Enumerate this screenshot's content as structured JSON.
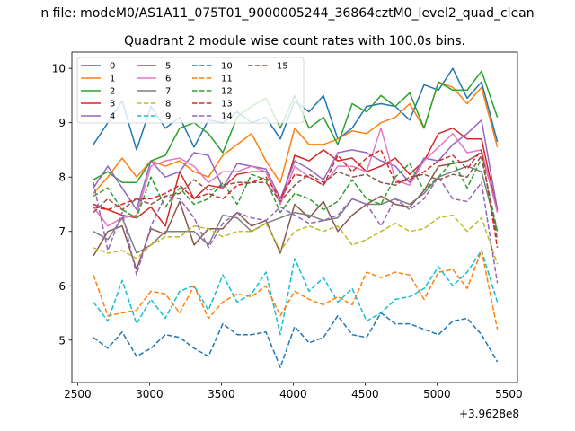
{
  "figure": {
    "suptitle": "n file: modeM0/AS1A11_075T01_9000005244_36864cztM0_level2_quad_clean",
    "title": "Quadrant 2 module wise count rates with 100.0s bins.",
    "offset_label": "+3.9628e8"
  },
  "chart_data": {
    "type": "line",
    "title": "Quadrant 2 module wise count rates with 100.0s bins.",
    "xlabel": "",
    "ylabel": "",
    "x_offset": 396280000,
    "xlim": [
      2460,
      5560
    ],
    "ylim": [
      4.22,
      10.3
    ],
    "xticks": [
      2500,
      3000,
      3500,
      4000,
      4500,
      5000,
      5500
    ],
    "xtick_labels": [
      "2500",
      "3000",
      "3500",
      "4000",
      "4500",
      "5000",
      "5500"
    ],
    "yticks": [
      5,
      6,
      7,
      8,
      9,
      10
    ],
    "ytick_labels": [
      "5",
      "6",
      "7",
      "8",
      "9",
      "10"
    ],
    "grid": false,
    "legend_position": "top-left",
    "legend_columns": 4,
    "x": [
      2610,
      2710,
      2810,
      2910,
      3010,
      3110,
      3210,
      3310,
      3410,
      3510,
      3610,
      3710,
      3810,
      3910,
      4010,
      4110,
      4210,
      4310,
      4410,
      4510,
      4610,
      4710,
      4810,
      4910,
      5010,
      5110,
      5210,
      5310,
      5420
    ],
    "series": [
      {
        "name": "0",
        "color": "#1f77b4",
        "dash": "solid",
        "values": [
          8.6,
          9.0,
          9.4,
          8.5,
          9.3,
          8.9,
          9.1,
          8.55,
          9.05,
          9.0,
          9.2,
          9.0,
          9.1,
          8.7,
          9.4,
          9.2,
          9.5,
          8.7,
          8.9,
          9.3,
          9.35,
          9.3,
          9.05,
          9.7,
          9.6,
          10.0,
          9.45,
          9.75,
          8.65
        ]
      },
      {
        "name": "1",
        "color": "#ff7f0e",
        "dash": "solid",
        "values": [
          7.7,
          8.0,
          8.35,
          8.0,
          8.3,
          8.2,
          8.3,
          8.1,
          8.0,
          8.4,
          8.6,
          8.8,
          8.3,
          7.9,
          8.9,
          8.6,
          8.6,
          8.7,
          8.85,
          8.8,
          9.0,
          9.1,
          9.35,
          8.9,
          9.75,
          9.65,
          9.35,
          9.65,
          8.55
        ]
      },
      {
        "name": "2",
        "color": "#2ca02c",
        "dash": "solid",
        "values": [
          7.95,
          8.1,
          7.9,
          7.9,
          8.3,
          8.4,
          8.9,
          9.0,
          8.8,
          8.45,
          9.1,
          9.3,
          9.45,
          8.9,
          9.5,
          8.9,
          9.1,
          8.6,
          9.35,
          9.2,
          9.5,
          9.3,
          9.55,
          8.9,
          9.75,
          9.6,
          9.6,
          9.95,
          9.1
        ]
      },
      {
        "name": "3",
        "color": "#d62728",
        "dash": "solid",
        "values": [
          7.5,
          7.4,
          7.3,
          7.25,
          7.45,
          7.1,
          8.1,
          7.6,
          7.85,
          7.8,
          8.05,
          8.1,
          8.1,
          7.5,
          8.4,
          8.3,
          8.5,
          8.3,
          8.35,
          8.1,
          8.2,
          8.35,
          8.05,
          8.3,
          8.8,
          8.9,
          8.7,
          8.7,
          7.35
        ]
      },
      {
        "name": "4",
        "color": "#9467bd",
        "dash": "solid",
        "values": [
          7.8,
          8.2,
          7.8,
          7.4,
          8.3,
          8.0,
          8.1,
          8.45,
          8.4,
          7.8,
          8.25,
          8.2,
          8.15,
          7.6,
          8.3,
          8.15,
          7.95,
          8.45,
          8.5,
          8.45,
          8.3,
          8.2,
          7.9,
          8.35,
          8.3,
          8.6,
          8.8,
          9.05,
          7.4
        ]
      },
      {
        "name": "5",
        "color": "#8c564b",
        "dash": "solid",
        "values": [
          6.55,
          7.0,
          7.1,
          6.3,
          7.05,
          6.95,
          7.55,
          6.75,
          7.05,
          7.05,
          7.35,
          7.1,
          7.2,
          6.6,
          7.5,
          7.25,
          7.55,
          7.0,
          7.3,
          7.5,
          7.65,
          7.5,
          7.45,
          7.75,
          8.2,
          8.25,
          8.3,
          8.45,
          7.4
        ]
      },
      {
        "name": "6",
        "color": "#e377c2",
        "dash": "solid",
        "values": [
          7.45,
          7.1,
          7.25,
          7.3,
          8.2,
          8.3,
          8.35,
          8.2,
          7.9,
          8.1,
          8.1,
          8.2,
          8.1,
          7.5,
          8.2,
          8.0,
          7.85,
          8.2,
          8.2,
          8.1,
          8.9,
          7.95,
          7.85,
          8.3,
          8.55,
          8.8,
          8.45,
          8.5,
          7.35
        ]
      },
      {
        "name": "7",
        "color": "#7f7f7f",
        "dash": "solid",
        "values": [
          7.0,
          6.85,
          7.25,
          6.6,
          6.75,
          7.0,
          7.0,
          7.0,
          6.75,
          7.3,
          7.25,
          7.0,
          7.15,
          7.25,
          7.35,
          7.3,
          7.2,
          7.25,
          7.6,
          7.5,
          7.5,
          7.6,
          7.5,
          7.7,
          8.0,
          8.1,
          8.2,
          8.1,
          7.0
        ]
      },
      {
        "name": "8",
        "color": "#bcbd22",
        "dash": "dashed",
        "values": [
          6.7,
          6.6,
          6.65,
          6.5,
          6.75,
          6.9,
          6.9,
          7.1,
          7.05,
          6.9,
          7.0,
          7.0,
          7.15,
          6.65,
          7.0,
          7.1,
          7.0,
          7.1,
          6.75,
          6.85,
          7.0,
          7.15,
          7.0,
          7.05,
          7.25,
          7.3,
          7.0,
          7.25,
          6.4
        ]
      },
      {
        "name": "9",
        "color": "#17becf",
        "dash": "dashed",
        "values": [
          5.7,
          5.35,
          6.1,
          5.3,
          5.75,
          5.4,
          5.9,
          6.0,
          5.55,
          6.2,
          5.7,
          5.85,
          6.25,
          5.1,
          6.5,
          5.9,
          6.15,
          5.7,
          5.95,
          5.35,
          5.5,
          5.75,
          5.8,
          5.95,
          6.35,
          6.0,
          6.25,
          6.65,
          5.7
        ]
      },
      {
        "name": "10",
        "color": "#1f77b4",
        "dash": "dashed",
        "values": [
          5.05,
          4.85,
          5.15,
          4.7,
          4.85,
          5.1,
          5.05,
          4.85,
          4.7,
          5.3,
          5.1,
          5.1,
          5.15,
          4.5,
          5.25,
          4.95,
          5.05,
          5.45,
          5.1,
          5.05,
          5.5,
          5.3,
          5.3,
          5.2,
          5.1,
          5.35,
          5.4,
          5.1,
          4.6
        ]
      },
      {
        "name": "11",
        "color": "#ff7f0e",
        "dash": "dashed",
        "values": [
          6.2,
          5.45,
          5.5,
          5.55,
          5.9,
          5.85,
          5.5,
          6.0,
          5.4,
          5.7,
          5.85,
          5.8,
          6.0,
          5.45,
          5.9,
          5.75,
          5.65,
          5.8,
          5.65,
          6.25,
          6.15,
          6.25,
          6.2,
          5.75,
          6.25,
          6.3,
          5.95,
          6.65,
          5.2
        ]
      },
      {
        "name": "12",
        "color": "#2ca02c",
        "dash": "dashed",
        "values": [
          7.65,
          7.8,
          7.4,
          7.25,
          8.0,
          7.45,
          7.8,
          7.5,
          7.6,
          7.9,
          7.5,
          8.05,
          7.95,
          7.35,
          7.7,
          7.6,
          7.4,
          7.55,
          7.95,
          7.6,
          7.5,
          8.0,
          8.25,
          7.75,
          8.0,
          8.3,
          7.8,
          8.35,
          7.0
        ]
      },
      {
        "name": "13",
        "color": "#d62728",
        "dash": "dashed",
        "values": [
          7.45,
          7.4,
          7.5,
          7.6,
          7.6,
          7.7,
          7.85,
          7.6,
          7.7,
          7.6,
          7.85,
          7.9,
          8.0,
          7.6,
          8.05,
          8.0,
          7.85,
          8.4,
          8.1,
          8.35,
          8.5,
          7.9,
          7.95,
          8.1,
          8.3,
          8.4,
          8.15,
          8.5,
          6.7
        ]
      },
      {
        "name": "14",
        "color": "#9467bd",
        "dash": "dashed",
        "values": [
          7.9,
          6.65,
          7.35,
          6.2,
          7.1,
          7.65,
          7.6,
          7.25,
          6.7,
          7.15,
          7.35,
          7.25,
          7.2,
          7.45,
          7.3,
          7.15,
          7.2,
          7.3,
          7.6,
          7.5,
          7.1,
          7.6,
          7.4,
          7.6,
          8.0,
          7.6,
          7.55,
          7.9,
          6.05
        ]
      },
      {
        "name": "15",
        "color": "#8c564b",
        "dash": "dashed",
        "values": [
          7.35,
          7.6,
          7.4,
          7.6,
          7.5,
          7.65,
          7.7,
          7.95,
          7.75,
          7.85,
          7.9,
          7.9,
          7.9,
          7.55,
          7.85,
          8.05,
          7.9,
          8.1,
          8.0,
          8.05,
          7.9,
          7.85,
          8.0,
          8.05,
          7.95,
          8.05,
          8.0,
          8.4,
          6.85
        ]
      }
    ]
  }
}
